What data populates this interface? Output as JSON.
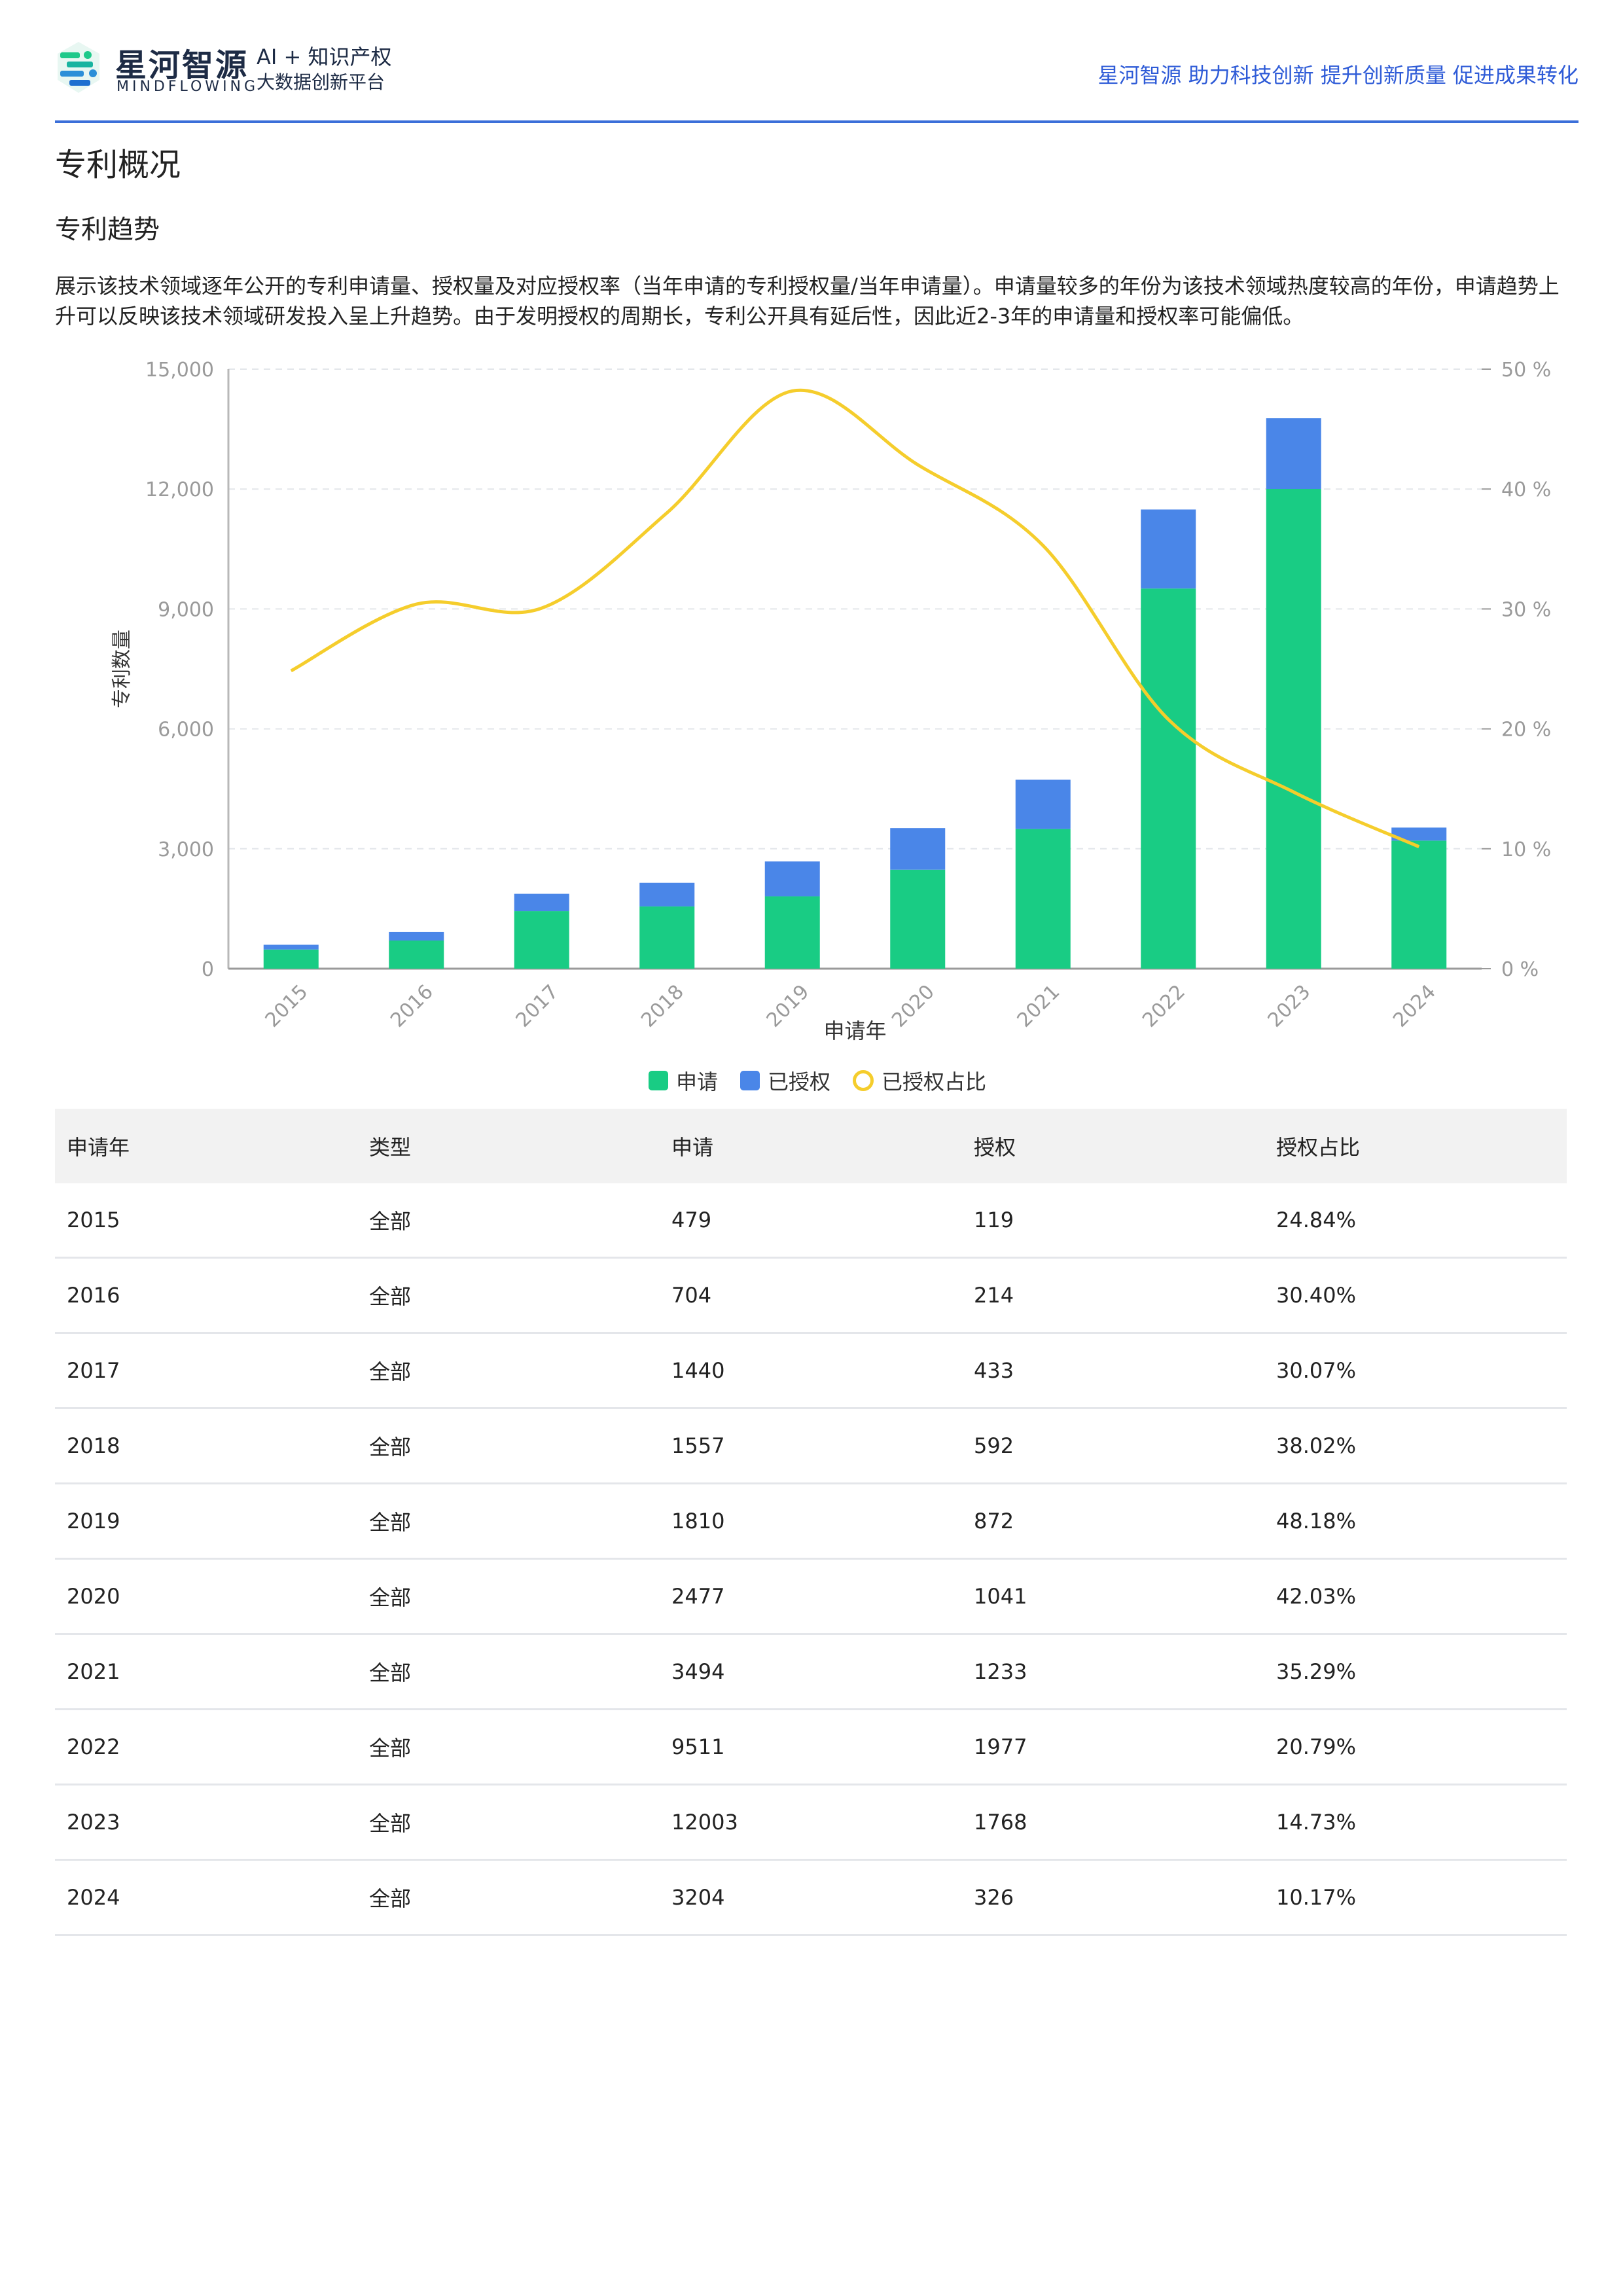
{
  "header": {
    "brand_cn": "星河智源",
    "brand_en": "MINDFLOWING",
    "tagline_1": "AI + 知识产权",
    "tagline_2": "大数据创新平台",
    "slogan": "星河智源 助力科技创新 提升创新质量 促进成果转化",
    "logo_icon": "mindflowing-logo-icon"
  },
  "page": {
    "title": "专利概况",
    "subtitle": "专利趋势",
    "description": "展示该技术领域逐年公开的专利申请量、授权量及对应授权率（当年申请的专利授权量/当年申请量）。申请量较多的年份为该技术领域热度较高的年份，申请趋势上升可以反映该技术领域研发投入呈上升趋势。由于发明授权的周期长，专利公开具有延后性，因此近2-3年的申请量和授权率可能偏低。"
  },
  "chart_data": {
    "type": "bar",
    "stacked": true,
    "categories": [
      "2015",
      "2016",
      "2017",
      "2018",
      "2019",
      "2020",
      "2021",
      "2022",
      "2023",
      "2024"
    ],
    "series": [
      {
        "name": "申请",
        "type": "bar",
        "axis": "left",
        "color": "#19cc84",
        "values": [
          479,
          704,
          1440,
          1557,
          1810,
          2477,
          3494,
          9511,
          12003,
          3204
        ]
      },
      {
        "name": "已授权",
        "type": "bar",
        "axis": "left",
        "color": "#4a86e8",
        "values": [
          119,
          214,
          433,
          592,
          872,
          1041,
          1233,
          1977,
          1768,
          326
        ]
      },
      {
        "name": "已授权占比",
        "type": "line",
        "axis": "right",
        "color": "#f5cd2c",
        "values": [
          24.84,
          30.4,
          30.07,
          38.02,
          48.18,
          42.03,
          35.29,
          20.79,
          14.73,
          10.17
        ]
      }
    ],
    "xlabel": "申请年",
    "ylabel": "专利数量",
    "ylim": [
      0,
      15000
    ],
    "yticks": [
      "0",
      "3,000",
      "6,000",
      "9,000",
      "12,000",
      "15,000"
    ],
    "y2lim": [
      0,
      50
    ],
    "y2ticks": [
      "0 %",
      "10 %",
      "20 %",
      "30 %",
      "40 %",
      "50 %"
    ],
    "grid": true,
    "legend_position": "bottom-center"
  },
  "table": {
    "headers": [
      "申请年",
      "类型",
      "申请",
      "授权",
      "授权占比"
    ],
    "rows": [
      [
        "2015",
        "全部",
        "479",
        "119",
        "24.84%"
      ],
      [
        "2016",
        "全部",
        "704",
        "214",
        "30.40%"
      ],
      [
        "2017",
        "全部",
        "1440",
        "433",
        "30.07%"
      ],
      [
        "2018",
        "全部",
        "1557",
        "592",
        "38.02%"
      ],
      [
        "2019",
        "全部",
        "1810",
        "872",
        "48.18%"
      ],
      [
        "2020",
        "全部",
        "2477",
        "1041",
        "42.03%"
      ],
      [
        "2021",
        "全部",
        "3494",
        "1233",
        "35.29%"
      ],
      [
        "2022",
        "全部",
        "9511",
        "1977",
        "20.79%"
      ],
      [
        "2023",
        "全部",
        "12003",
        "1768",
        "14.73%"
      ],
      [
        "2024",
        "全部",
        "3204",
        "326",
        "10.17%"
      ]
    ]
  }
}
